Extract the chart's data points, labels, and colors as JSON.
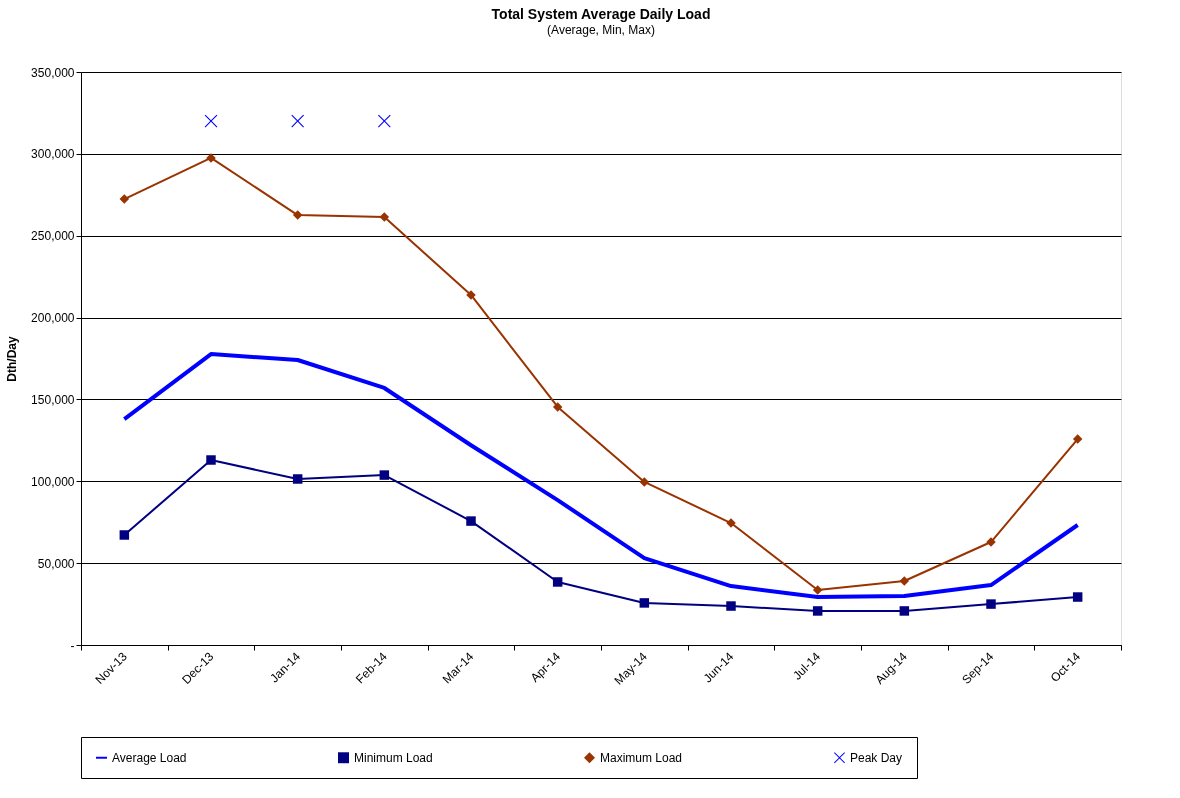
{
  "chart_data": {
    "type": "line",
    "title": "Total System Average Daily Load",
    "subtitle": "(Average, Min, Max)",
    "ylabel": "Dth/Day",
    "categories": [
      "Nov-13",
      "Dec-13",
      "Jan-14",
      "Feb-14",
      "Mar-14",
      "Apr-14",
      "May-14",
      "Jun-14",
      "Jul-14",
      "Aug-14",
      "Sep-14",
      "Oct-14"
    ],
    "series": [
      {
        "name": "Average Load",
        "marker": "none",
        "color": "#0000ff",
        "values": [
          138000,
          177700,
          174100,
          157000,
          122000,
          88500,
          53100,
          36000,
          29300,
          29900,
          36600,
          73300
        ]
      },
      {
        "name": "Minimum Load",
        "marker": "square",
        "color": "#000080",
        "values": [
          67200,
          113000,
          101400,
          103800,
          75700,
          38500,
          25700,
          23800,
          20800,
          20800,
          25000,
          29300
        ]
      },
      {
        "name": "Maximum Load",
        "marker": "diamond",
        "color": "#993300",
        "values": [
          272400,
          297500,
          262600,
          261400,
          213800,
          145400,
          99600,
          74500,
          33600,
          39100,
          62900,
          125800
        ]
      },
      {
        "name": "Peak Day",
        "type": "scatter",
        "marker": "cross",
        "color": "#0000ff",
        "values": [
          null,
          320000,
          320000,
          320000,
          null,
          null,
          null,
          null,
          null,
          null,
          null,
          null
        ]
      }
    ],
    "ylim": [
      0,
      350000
    ],
    "yticks": [
      {
        "value": 0,
        "label": "-"
      },
      {
        "value": 50000,
        "label": "50,000"
      },
      {
        "value": 100000,
        "label": "100,000"
      },
      {
        "value": 150000,
        "label": "150,000"
      },
      {
        "value": 200000,
        "label": "200,000"
      },
      {
        "value": 250000,
        "label": "250,000"
      },
      {
        "value": 300000,
        "label": "300,000"
      },
      {
        "value": 350000,
        "label": "350,000"
      }
    ],
    "grid": "y",
    "legend": "bottom"
  }
}
